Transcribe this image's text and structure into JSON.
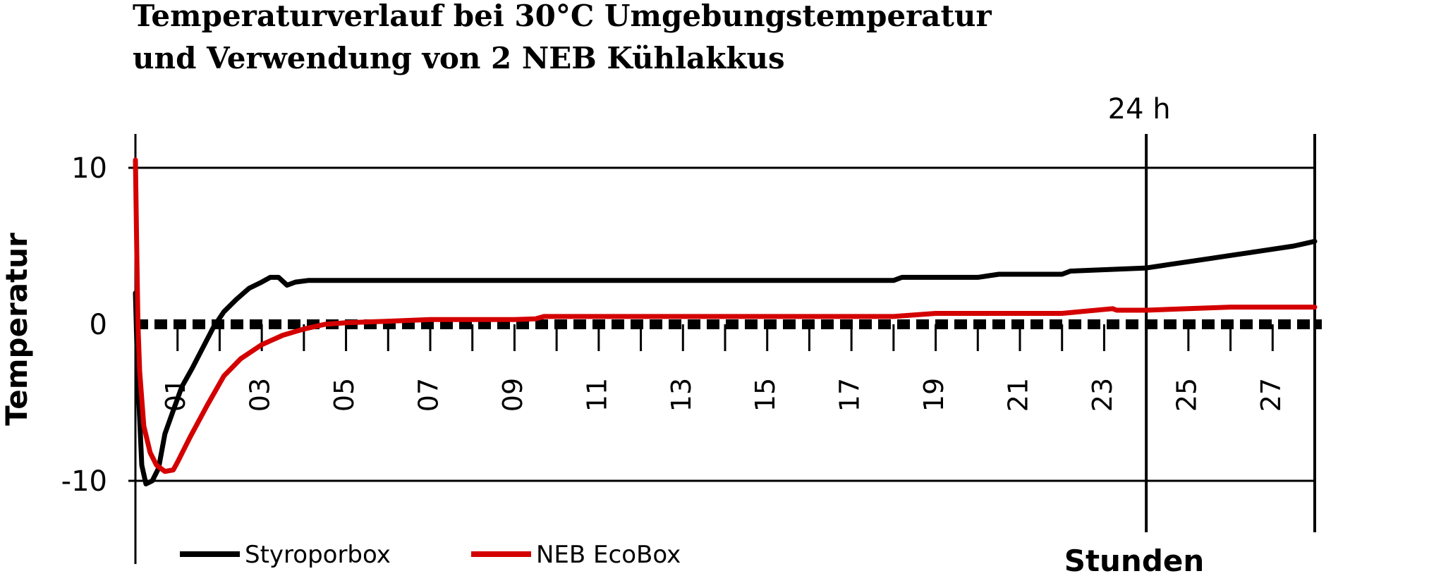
{
  "chart_data": {
    "type": "line",
    "title": "Temperaturverlauf bei 30°C Umgebungstemperatur",
    "subtitle": "und Verwendung von 2 NEB Kühlakkus",
    "xlabel": "Stunden",
    "ylabel": "Temperatur",
    "xlim": [
      0,
      28
    ],
    "ylim": [
      -15,
      12
    ],
    "y_ticks": [
      10,
      0,
      -10
    ],
    "y_tick_labels": [
      "10",
      "0",
      "-10"
    ],
    "x_ticks": [
      1,
      3,
      5,
      7,
      9,
      11,
      13,
      15,
      17,
      19,
      21,
      23,
      25,
      27
    ],
    "x_tick_labels": [
      "01",
      "03",
      "05",
      "07",
      "09",
      "11",
      "13",
      "15",
      "17",
      "19",
      "21",
      "23",
      "25",
      "27"
    ],
    "gridlines_y": [
      10,
      -10
    ],
    "zero_line_dashed": true,
    "markers": [
      {
        "x": 24,
        "label": "24 h"
      },
      {
        "x": 28,
        "label": ""
      }
    ],
    "legend_position": "bottom-left",
    "series": [
      {
        "name": "Styroporbox",
        "color": "#000000",
        "x": [
          0,
          0.05,
          0.1,
          0.15,
          0.25,
          0.4,
          0.55,
          0.7,
          0.9,
          1.1,
          1.35,
          1.6,
          1.85,
          2.1,
          2.4,
          2.7,
          3.0,
          3.2,
          3.4,
          3.6,
          3.8,
          4.1,
          5,
          10,
          15,
          18,
          18.2,
          20,
          20.5,
          22,
          22.2,
          24,
          24.5,
          25,
          25.5,
          26,
          26.5,
          27,
          27.5,
          28
        ],
        "values": [
          2.0,
          -3.0,
          -6.0,
          -9.0,
          -10.2,
          -10.0,
          -9.2,
          -7.0,
          -5.5,
          -4.0,
          -2.8,
          -1.5,
          -0.2,
          0.8,
          1.6,
          2.3,
          2.7,
          3.0,
          3.0,
          2.5,
          2.7,
          2.8,
          2.8,
          2.8,
          2.8,
          2.8,
          3.0,
          3.0,
          3.2,
          3.2,
          3.4,
          3.6,
          3.8,
          4.0,
          4.2,
          4.4,
          4.6,
          4.8,
          5.0,
          5.3
        ]
      },
      {
        "name": "NEB EcoBox",
        "color": "#d40000",
        "x": [
          0,
          0.03,
          0.06,
          0.1,
          0.2,
          0.35,
          0.5,
          0.7,
          0.9,
          1.0,
          1.3,
          1.7,
          2.1,
          2.5,
          3.0,
          3.5,
          4.0,
          4.5,
          5.0,
          6.0,
          7.0,
          8.0,
          9.0,
          9.5,
          9.7,
          12,
          15,
          18,
          19,
          21,
          22,
          23.2,
          23.3,
          24,
          25,
          26,
          27,
          28
        ],
        "values": [
          10.5,
          5.0,
          0.0,
          -3.0,
          -6.5,
          -8.2,
          -9.0,
          -9.4,
          -9.3,
          -8.8,
          -7.2,
          -5.2,
          -3.3,
          -2.2,
          -1.3,
          -0.7,
          -0.3,
          0.0,
          0.1,
          0.2,
          0.3,
          0.3,
          0.3,
          0.35,
          0.5,
          0.5,
          0.5,
          0.5,
          0.7,
          0.7,
          0.7,
          1.0,
          0.9,
          0.9,
          1.0,
          1.1,
          1.1,
          1.1
        ]
      }
    ]
  }
}
